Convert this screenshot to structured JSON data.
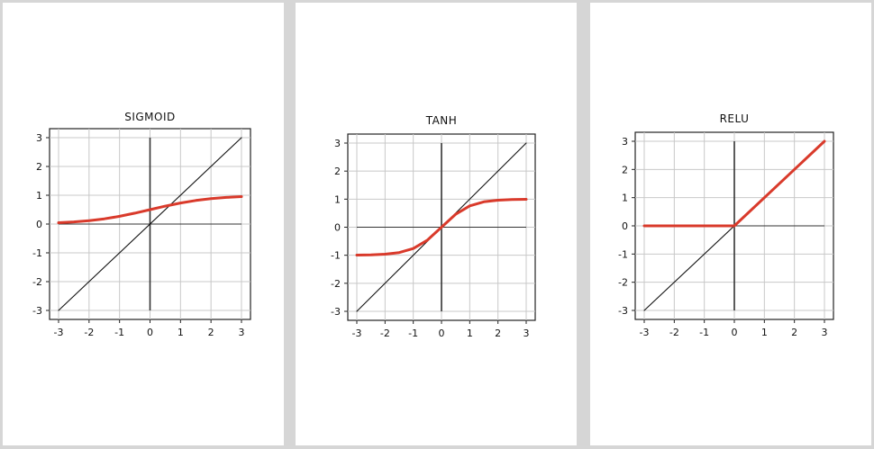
{
  "chart_data": [
    {
      "type": "line",
      "title": "SIGMOID",
      "xlim": [
        -3,
        3
      ],
      "ylim": [
        -3,
        3
      ],
      "xticks": [
        "-3",
        "-2",
        "-1",
        "0",
        "1",
        "2",
        "3"
      ],
      "yticks": [
        "3",
        "2",
        "1",
        "0",
        "-1",
        "-2",
        "-3"
      ],
      "grid": true,
      "series": [
        {
          "color": "#d93a2b",
          "x": [
            -3,
            -2.5,
            -2,
            -1.5,
            -1,
            -0.5,
            0,
            0.5,
            1,
            1.5,
            2,
            2.5,
            3
          ],
          "y": [
            0.047,
            0.076,
            0.119,
            0.182,
            0.269,
            0.378,
            0.5,
            0.622,
            0.731,
            0.818,
            0.881,
            0.924,
            0.953
          ]
        },
        {
          "color": "#111111",
          "x": [
            -3,
            3
          ],
          "y": [
            -3,
            3
          ]
        }
      ]
    },
    {
      "type": "line",
      "title": "TANH",
      "xlim": [
        -3,
        3
      ],
      "ylim": [
        -3,
        3
      ],
      "xticks": [
        "-3",
        "-2",
        "-1",
        "0",
        "1",
        "2",
        "3"
      ],
      "yticks": [
        "3",
        "2",
        "1",
        "0",
        "-1",
        "-2",
        "-3"
      ],
      "grid": true,
      "series": [
        {
          "color": "#d93a2b",
          "x": [
            -3,
            -2.5,
            -2,
            -1.5,
            -1,
            -0.5,
            0,
            0.5,
            1,
            1.5,
            2,
            2.5,
            3
          ],
          "y": [
            -0.995,
            -0.987,
            -0.964,
            -0.905,
            -0.762,
            -0.462,
            0,
            0.462,
            0.762,
            0.905,
            0.964,
            0.987,
            0.995
          ]
        },
        {
          "color": "#111111",
          "x": [
            -3,
            3
          ],
          "y": [
            -3,
            3
          ]
        }
      ]
    },
    {
      "type": "line",
      "title": "RELU",
      "xlim": [
        -3,
        3
      ],
      "ylim": [
        -3,
        3
      ],
      "xticks": [
        "-3",
        "-2",
        "-1",
        "0",
        "1",
        "2",
        "3"
      ],
      "yticks": [
        "3",
        "2",
        "1",
        "0",
        "-1",
        "-2",
        "-3"
      ],
      "grid": true,
      "series": [
        {
          "color": "#d93a2b",
          "x": [
            -3,
            0,
            3
          ],
          "y": [
            0,
            0,
            3
          ]
        },
        {
          "color": "#111111",
          "x": [
            -3,
            3
          ],
          "y": [
            -3,
            3
          ]
        }
      ]
    }
  ]
}
